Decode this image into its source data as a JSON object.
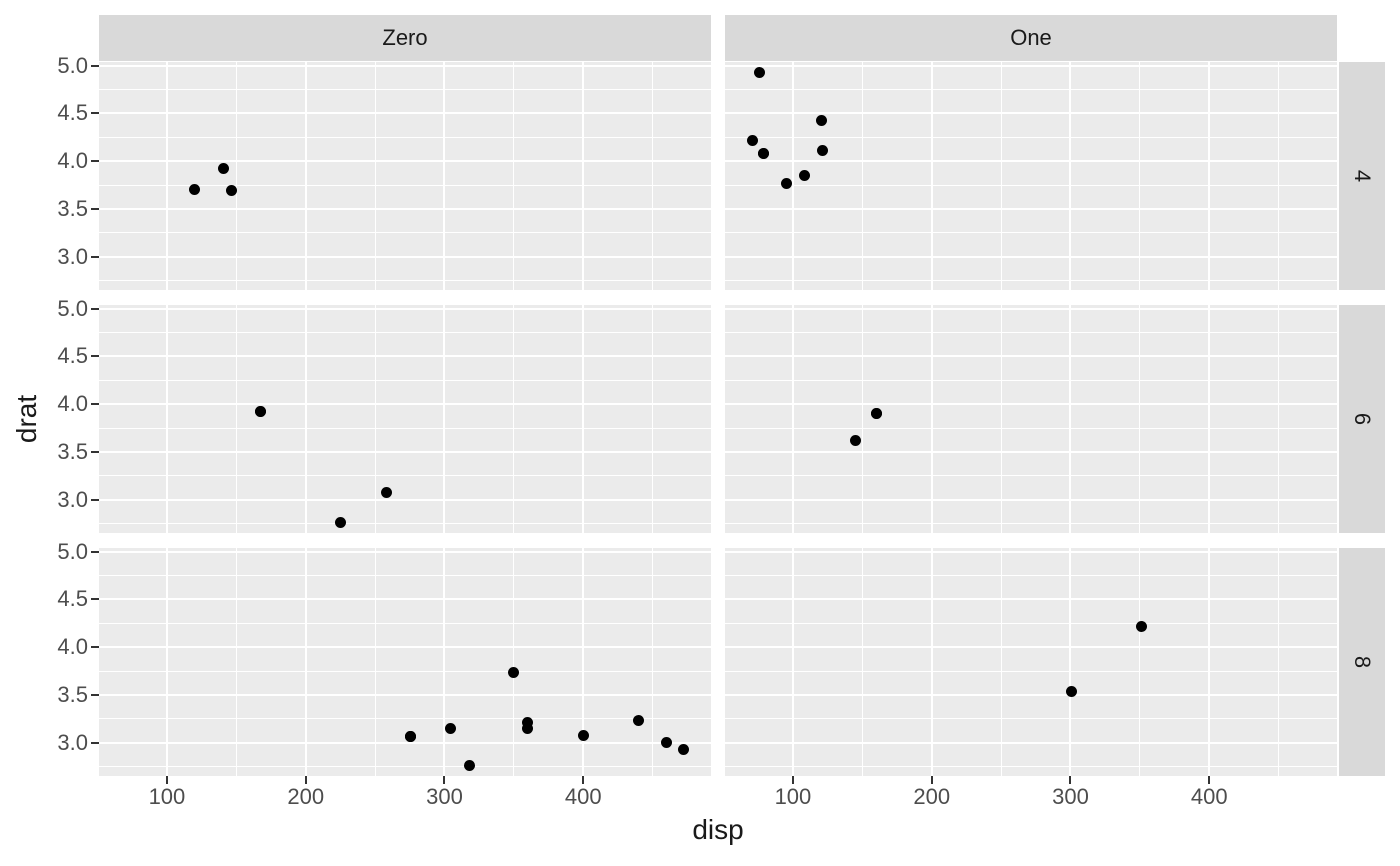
{
  "chart_data": {
    "type": "scatter",
    "title": "",
    "xlabel": "disp",
    "ylabel": "drat",
    "grid": "on",
    "legend": "none",
    "x_domain": [
      51.055,
      492.045
    ],
    "y_domain": [
      2.6515,
      5.0385
    ],
    "x_ticks": [
      {
        "label": "100",
        "value": 100
      },
      {
        "label": "200",
        "value": 200
      },
      {
        "label": "300",
        "value": 300
      },
      {
        "label": "400",
        "value": 400
      }
    ],
    "y_ticks": [
      {
        "label": "5.0",
        "value": 5.0
      },
      {
        "label": "4.5",
        "value": 4.5
      },
      {
        "label": "4.0",
        "value": 4.0
      },
      {
        "label": "3.5",
        "value": 3.5
      },
      {
        "label": "3.0",
        "value": 3.0
      }
    ],
    "x_minor": [
      150,
      250,
      350,
      450
    ],
    "y_minor": [
      2.75,
      3.25,
      3.75,
      4.25,
      4.75
    ],
    "facet_cols": [
      "Zero",
      "One"
    ],
    "facet_rows": [
      "4",
      "6",
      "8"
    ],
    "panels": [
      {
        "col": "Zero",
        "row": "4",
        "points": [
          [
            120.1,
            3.7
          ],
          [
            140.8,
            3.92
          ],
          [
            146.7,
            3.69
          ]
        ]
      },
      {
        "col": "One",
        "row": "4",
        "points": [
          [
            71.1,
            4.22
          ],
          [
            75.7,
            4.93
          ],
          [
            78.7,
            4.08
          ],
          [
            79.0,
            4.08
          ],
          [
            95.1,
            3.77
          ],
          [
            108.0,
            3.85
          ],
          [
            120.3,
            4.43
          ],
          [
            121.0,
            4.11
          ]
        ]
      },
      {
        "col": "Zero",
        "row": "6",
        "points": [
          [
            167.6,
            3.92
          ],
          [
            167.6,
            3.92
          ],
          [
            225.0,
            2.76
          ],
          [
            258.0,
            3.08
          ]
        ]
      },
      {
        "col": "One",
        "row": "6",
        "points": [
          [
            145.0,
            3.62
          ],
          [
            160.0,
            3.9
          ],
          [
            160.0,
            3.9
          ]
        ]
      },
      {
        "col": "Zero",
        "row": "8",
        "points": [
          [
            275.8,
            3.07
          ],
          [
            275.8,
            3.07
          ],
          [
            275.8,
            3.07
          ],
          [
            304.0,
            3.15
          ],
          [
            318.0,
            2.76
          ],
          [
            350.0,
            3.73
          ],
          [
            360.0,
            3.15
          ],
          [
            360.0,
            3.21
          ],
          [
            400.0,
            3.08
          ],
          [
            440.0,
            3.23
          ],
          [
            460.0,
            3.0
          ],
          [
            472.0,
            2.93
          ]
        ]
      },
      {
        "col": "One",
        "row": "8",
        "points": [
          [
            301.0,
            3.54
          ],
          [
            351.0,
            4.22
          ]
        ]
      }
    ]
  },
  "colors": {
    "background": "#ffffff",
    "panel_bg": "#ebebeb",
    "strip_bg": "#d9d9d9",
    "grid": "#ffffff",
    "point": "#000000",
    "tick_mark": "#333333",
    "tick_label": "#4d4d4d",
    "axis_title": "#1a1a1a",
    "strip_text": "#1a1a1a"
  }
}
